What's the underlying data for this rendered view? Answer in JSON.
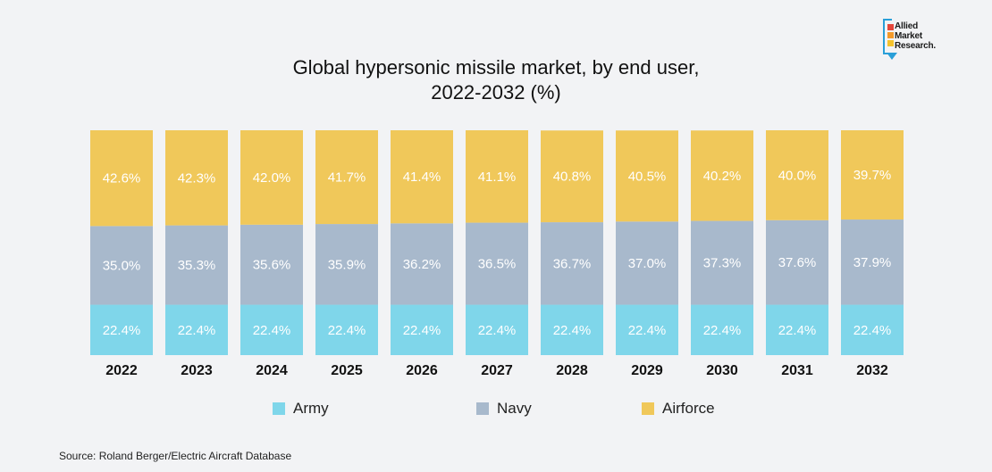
{
  "logo": {
    "text": "Allied\nMarket\nResearch."
  },
  "source": "Source: Roland Berger/Electric Aircraft Database",
  "chart_data": {
    "type": "bar",
    "stacked": true,
    "title": "Global hypersonic missile market, by end user,\n2022-2032 (%)",
    "categories": [
      "2022",
      "2023",
      "2024",
      "2025",
      "2026",
      "2027",
      "2028",
      "2029",
      "2030",
      "2031",
      "2032"
    ],
    "series": [
      {
        "name": "Army",
        "color": "#7fd6ea",
        "values": [
          22.4,
          22.4,
          22.4,
          22.4,
          22.4,
          22.4,
          22.4,
          22.4,
          22.4,
          22.4,
          22.4
        ],
        "labels": [
          "22.4%",
          "22.4%",
          "22.4%",
          "22.4%",
          "22.4%",
          "22.4%",
          "22.4%",
          "22.4%",
          "22.4%",
          "22.4%",
          "22.4%"
        ]
      },
      {
        "name": "Navy",
        "color": "#a8b9cc",
        "values": [
          35.0,
          35.3,
          35.6,
          35.9,
          36.2,
          36.5,
          36.7,
          37.0,
          37.3,
          37.6,
          37.9
        ],
        "labels": [
          "35.0%",
          "35.3%",
          "35.6%",
          "35.9%",
          "36.2%",
          "36.5%",
          "36.7%",
          "37.0%",
          "37.3%",
          "37.6%",
          "37.9%"
        ]
      },
      {
        "name": "Airforce",
        "color": "#f0c85a",
        "values": [
          42.6,
          42.3,
          42.0,
          41.7,
          41.4,
          41.1,
          40.8,
          40.5,
          40.2,
          40.0,
          39.7
        ],
        "labels": [
          "42.6%",
          "42.3%",
          "42.0%",
          "41.7%",
          "41.4%",
          "41.1%",
          "40.8%",
          "40.5%",
          "40.2%",
          "40.0%",
          "39.7%"
        ]
      }
    ],
    "ylim": [
      0,
      100
    ],
    "xlabel": "",
    "ylabel": "",
    "grid": false,
    "legend_position": "bottom"
  }
}
